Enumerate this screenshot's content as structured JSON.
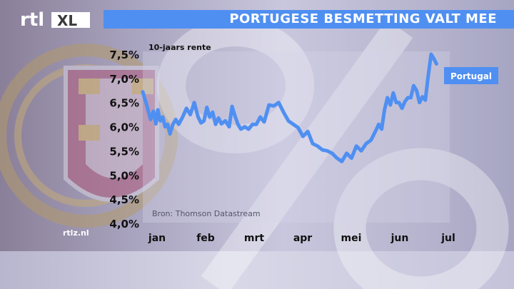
{
  "brand": {
    "logo_text": "rtl XL",
    "site": "rtlz.nl"
  },
  "title": "PORTUGESE BESMETTING VALT MEE",
  "colors": {
    "accent": "#4f8ff2",
    "line": "#4f8ff2",
    "label_text": "#ffffff"
  },
  "chart_data": {
    "type": "line",
    "title": "PORTUGESE BESMETTING VALT MEE",
    "subtitle": "10-jaars rente",
    "source": "Bron: Thomson Datastream",
    "ylim": [
      4.0,
      7.5
    ],
    "y_ticks": [
      "7,5%",
      "7,0%",
      "6,5%",
      "6,0%",
      "5,5%",
      "5,0%",
      "4,5%",
      "4,0%"
    ],
    "x_ticks": [
      "jan",
      "feb",
      "mrt",
      "apr",
      "mei",
      "jun",
      "jul"
    ],
    "xlim": [
      0,
      6.25
    ],
    "grid": false,
    "series": [
      {
        "name": "Portugal",
        "x": [
          0.0,
          0.08,
          0.16,
          0.22,
          0.27,
          0.31,
          0.36,
          0.41,
          0.46,
          0.51,
          0.56,
          0.62,
          0.68,
          0.74,
          0.82,
          0.9,
          0.98,
          1.06,
          1.14,
          1.2,
          1.26,
          1.32,
          1.38,
          1.44,
          1.5,
          1.56,
          1.62,
          1.7,
          1.78,
          1.84,
          1.9,
          1.96,
          2.02,
          2.1,
          2.18,
          2.26,
          2.34,
          2.42,
          2.5,
          2.6,
          2.7,
          2.8,
          2.9,
          3.0,
          3.1,
          3.2,
          3.3,
          3.4,
          3.5,
          3.6,
          3.7,
          3.8,
          3.9,
          4.0,
          4.1,
          4.2,
          4.3,
          4.4,
          4.5,
          4.6,
          4.7,
          4.8,
          4.86,
          4.92,
          4.98,
          5.04,
          5.1,
          5.16,
          5.22,
          5.28,
          5.34,
          5.4,
          5.46,
          5.52,
          5.58,
          5.64,
          5.7,
          5.76,
          5.82,
          5.88,
          5.94,
          6.0,
          6.05
        ],
        "y": [
          6.72,
          6.45,
          6.15,
          6.32,
          6.06,
          6.35,
          6.12,
          6.2,
          6.0,
          6.05,
          5.85,
          6.05,
          6.15,
          6.05,
          6.2,
          6.38,
          6.25,
          6.5,
          6.2,
          6.08,
          6.12,
          6.4,
          6.2,
          6.3,
          6.05,
          6.18,
          6.06,
          6.12,
          6.0,
          6.42,
          6.22,
          6.05,
          5.95,
          6.0,
          5.95,
          6.05,
          6.05,
          6.2,
          6.1,
          6.45,
          6.43,
          6.5,
          6.3,
          6.12,
          6.05,
          5.98,
          5.8,
          5.9,
          5.65,
          5.6,
          5.52,
          5.5,
          5.45,
          5.35,
          5.28,
          5.45,
          5.35,
          5.6,
          5.5,
          5.65,
          5.72,
          5.92,
          6.05,
          5.95,
          6.35,
          6.6,
          6.45,
          6.7,
          6.5,
          6.5,
          6.38,
          6.52,
          6.6,
          6.6,
          6.85,
          6.75,
          6.5,
          6.62,
          6.55,
          7.05,
          7.5,
          7.4,
          7.3
        ]
      }
    ]
  }
}
